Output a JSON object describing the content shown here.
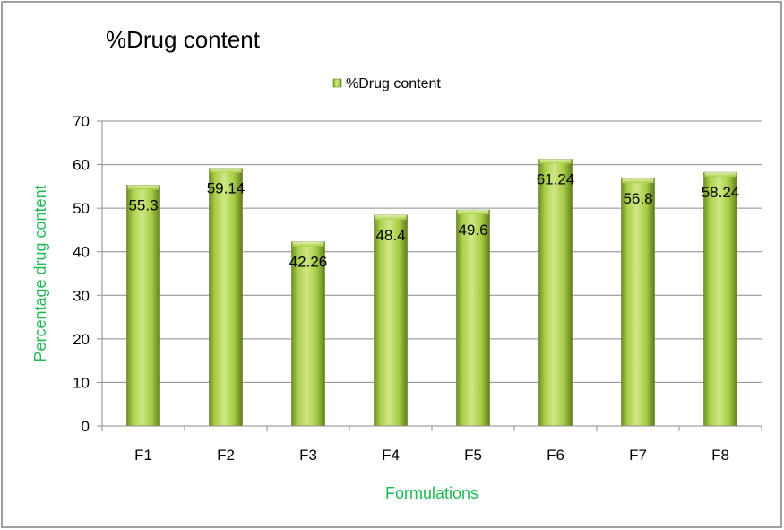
{
  "chart_data": {
    "type": "bar",
    "title": "%Drug content",
    "xlabel": "Formulations",
    "ylabel": "Percentage drug content",
    "categories": [
      "F1",
      "F2",
      "F3",
      "F4",
      "F5",
      "F6",
      "F7",
      "F8"
    ],
    "series": [
      {
        "name": "%Drug content",
        "values": [
          55.3,
          59.14,
          42.26,
          48.4,
          49.6,
          61.24,
          56.8,
          58.24
        ],
        "value_labels": [
          "55.3",
          "59.14",
          "42.26",
          "48.4",
          "49.6",
          "61.24",
          "56.8",
          "58.24"
        ]
      }
    ],
    "ylim": [
      0,
      70
    ],
    "yticks": [
      0,
      10,
      20,
      30,
      40,
      50,
      60,
      70
    ],
    "grid": true,
    "legend_position": "top-center",
    "colors": {
      "bar_light": "#c8e27a",
      "bar_mid": "#9cc43c",
      "bar_dark": "#5f7e1e",
      "axis_title": "#1db954",
      "grid": "#8c8c8c",
      "text": "#000000",
      "border": "#808080"
    }
  }
}
